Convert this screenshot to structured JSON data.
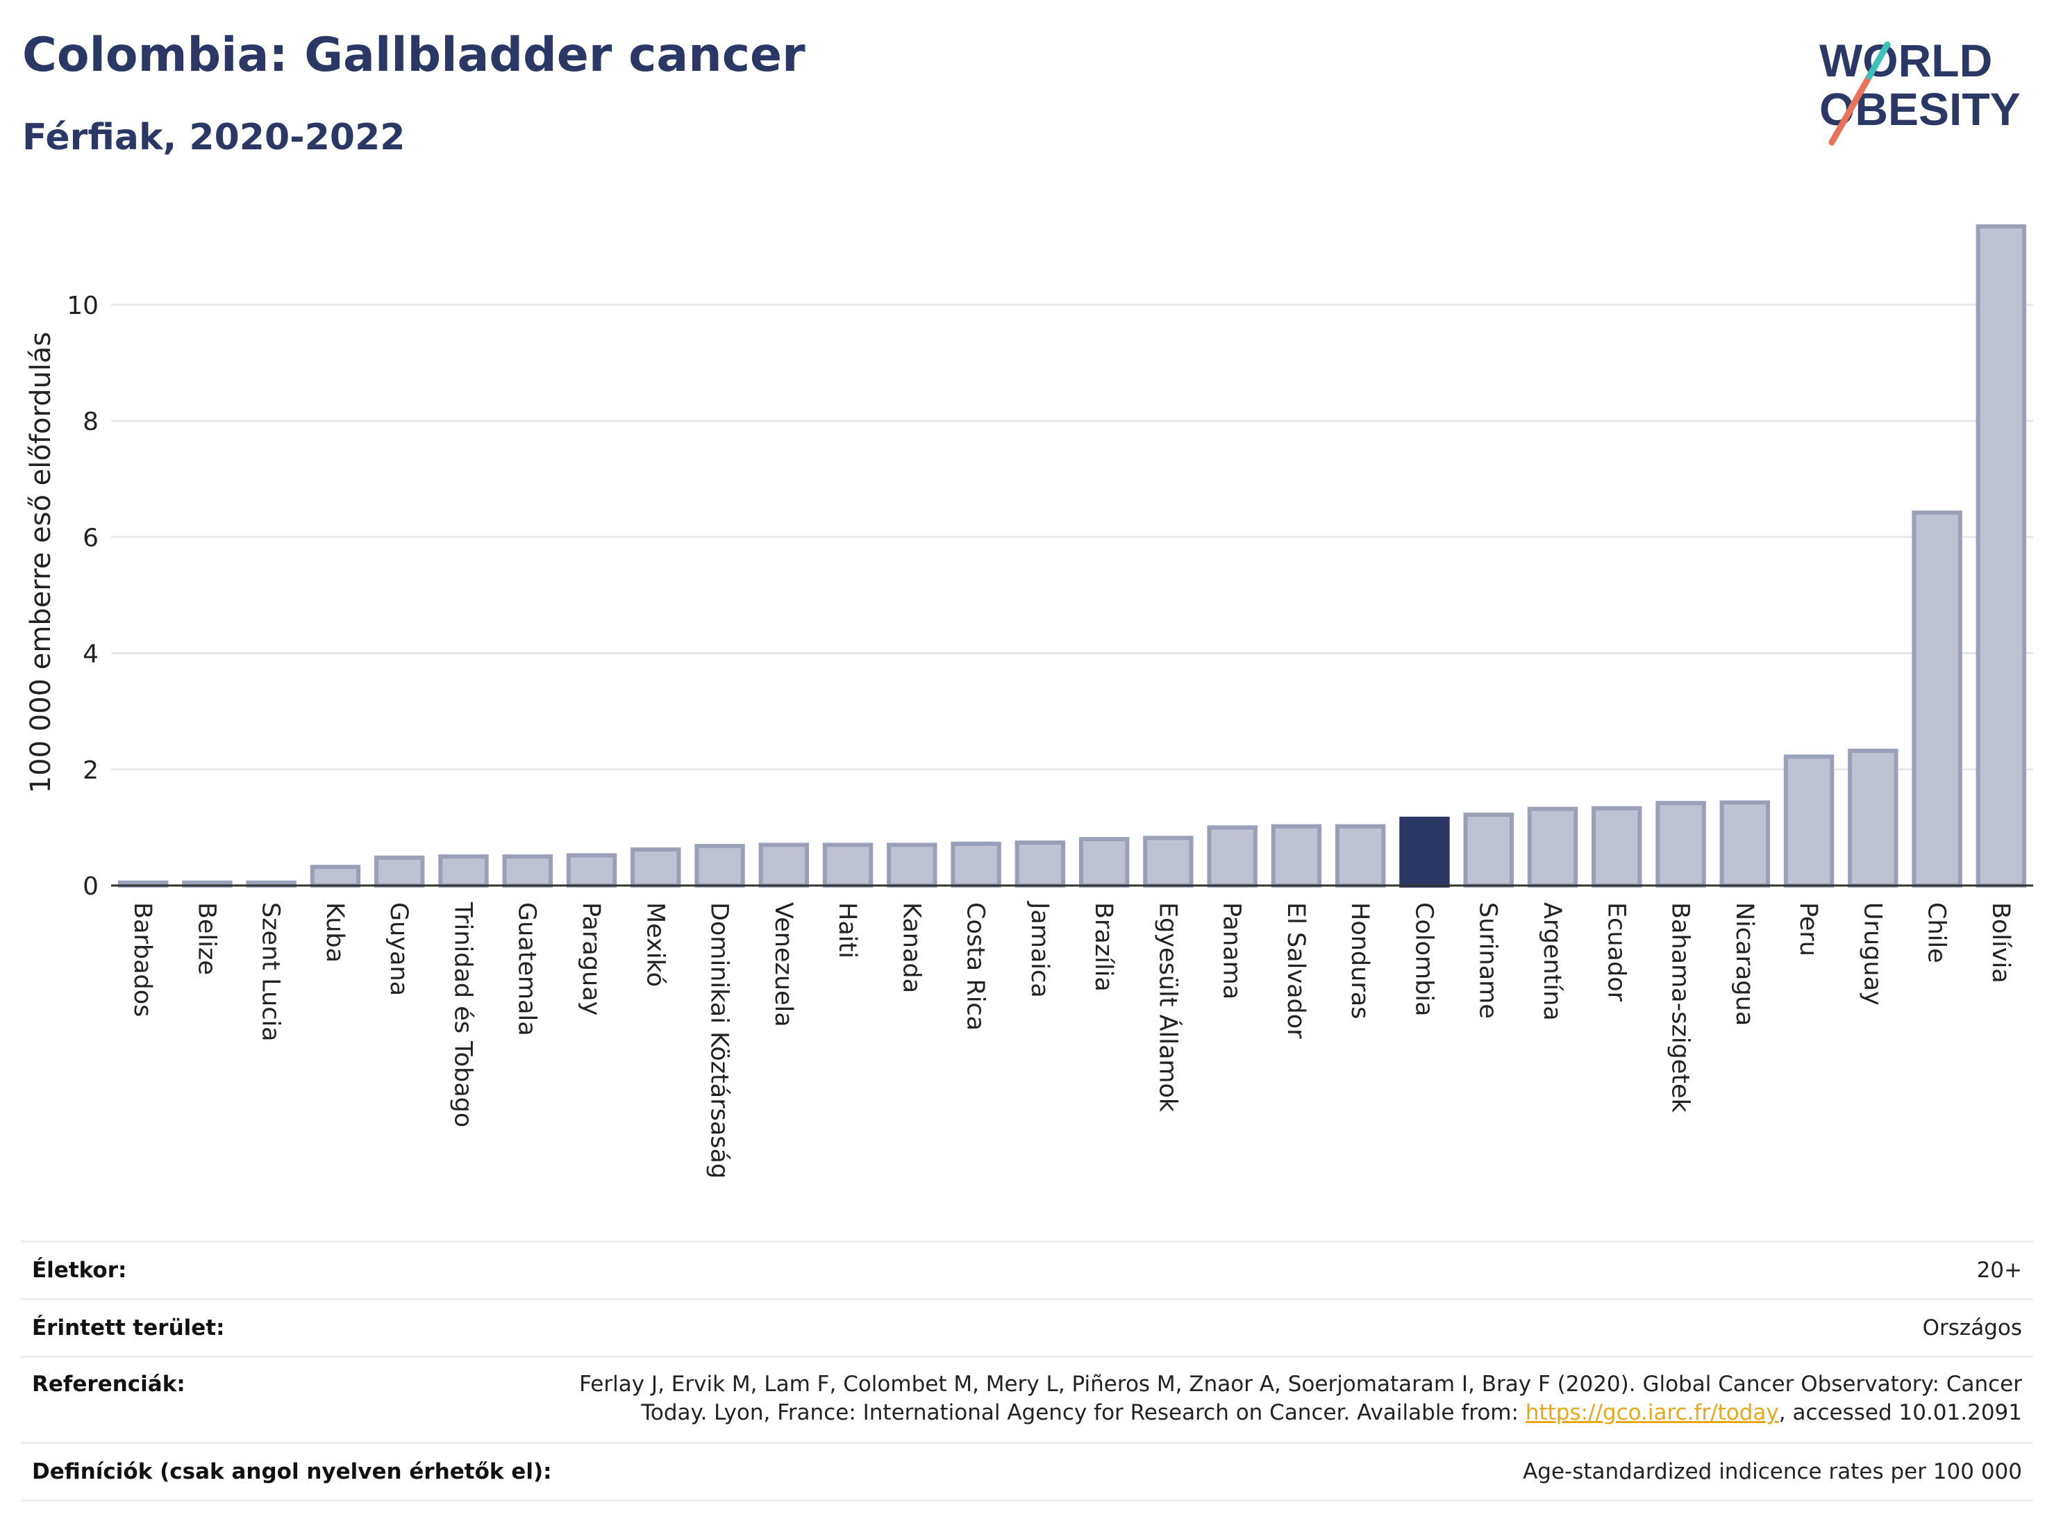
{
  "header": {
    "title": "Colombia: Gallbladder cancer",
    "subtitle": "Férfiak, 2020-2022"
  },
  "logo": {
    "line1": "WORLD",
    "line2": "OBESITY",
    "slash_color": "#e8735a",
    "accent_color": "#3ec1b6"
  },
  "colors": {
    "bar": "#bfc3d1",
    "bar_border": "#9aa0b8",
    "highlight": "#2b3865",
    "grid": "#e6e8ee",
    "axis": "#333333"
  },
  "chart_data": {
    "type": "bar",
    "title": "",
    "xlabel": "",
    "ylabel": "100 000 emberre eső előfordulás",
    "ylim": [
      0,
      11.6
    ],
    "yticks": [
      0,
      2,
      4,
      6,
      8,
      10
    ],
    "grid": true,
    "highlight": "Colombia",
    "categories": [
      "Barbados",
      "Belize",
      "Szent Lucia",
      "Kuba",
      "Guyana",
      "Trinidad és Tobago",
      "Guatemala",
      "Paraguay",
      "Mexikó",
      "Dominikai Köztársaság",
      "Venezuela",
      "Haiti",
      "Kanada",
      "Costa Rica",
      "Jamaica",
      "Brazília",
      "Egyesült Államok",
      "Panama",
      "El Salvador",
      "Honduras",
      "Colombia",
      "Suriname",
      "Argentína",
      "Ecuador",
      "Bahama-szigetek",
      "Nicaragua",
      "Peru",
      "Uruguay",
      "Chile",
      "Bolívia"
    ],
    "values": [
      0.05,
      0.05,
      0.05,
      0.32,
      0.48,
      0.5,
      0.5,
      0.52,
      0.62,
      0.68,
      0.7,
      0.7,
      0.7,
      0.72,
      0.74,
      0.8,
      0.82,
      1.0,
      1.02,
      1.02,
      1.15,
      1.22,
      1.32,
      1.33,
      1.42,
      1.43,
      2.22,
      2.32,
      6.42,
      11.35
    ]
  },
  "info": {
    "age_label": "Életkor:",
    "age_value": "20+",
    "area_label": "Érintett terület:",
    "area_value": "Országos",
    "ref_label": "Referenciák:",
    "ref_text_1": "Ferlay J, Ervik M, Lam F, Colombet M, Mery L, Piñeros M, Znaor A, Soerjomataram I, Bray F (2020). Global Cancer Observatory: Cancer",
    "ref_text_2": "Today. Lyon, France: International Agency for Research on Cancer. Available from: ",
    "ref_link": "https://gco.iarc.fr/today",
    "ref_text_3": ", accessed 10.01.2091",
    "def_label": "Definíciók (csak angol nyelven érhetők el):",
    "def_value": "Age-standardized indicence rates per 100 000"
  }
}
